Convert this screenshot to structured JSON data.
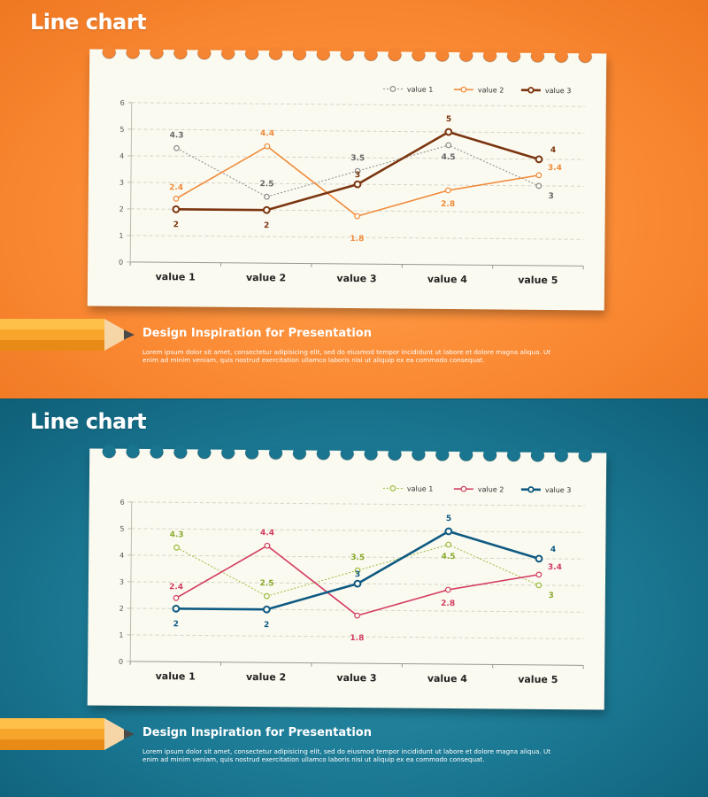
{
  "slides": [
    {
      "title": "Line chart",
      "subtitle": "Design Inspiration for Presentation",
      "body": "Lorem ipsum dolor sit amet, consectetur adipisicing elit, sed do eiusmod tempor incididunt ut labore et dolore magna aliqua. Ut enim ad minim veniam, quis nostrud exercitation ullamco laboris nisi ut aliquip ex ea commodo consequat.",
      "colors": {
        "background": "#fb8a34",
        "hole": "#f58532",
        "series": [
          "#8a8a8a",
          "#f08a3a",
          "#7b3510"
        ],
        "labels": [
          "#666666",
          "#f08a3a",
          "#7b3510"
        ]
      }
    },
    {
      "title": "Line chart",
      "subtitle": "Design Inspiration for Presentation",
      "body": "Lorem ipsum dolor sit amet, consectetur adipisicing elit, sed do eiusmod tempor incididunt ut labore et dolore magna aliqua. Ut enim ad minim veniam, quis nostrud exercitation ullamco laboris nisi ut aliquip ex ea commodo consequat.",
      "colors": {
        "background": "#1b7893",
        "hole": "#1a7690",
        "series": [
          "#9bbb3c",
          "#d23a62",
          "#0e5a82"
        ],
        "labels": [
          "#8aaa2c",
          "#d23a62",
          "#0e5a82"
        ]
      }
    }
  ],
  "chart_data": [
    {
      "type": "line",
      "categories": [
        "value 1",
        "value 2",
        "value 3",
        "value 4",
        "value 5"
      ],
      "series": [
        {
          "name": "value 1",
          "values": [
            4.3,
            2.5,
            3.5,
            4.5,
            3
          ],
          "style": "dotted"
        },
        {
          "name": "value 2",
          "values": [
            2.4,
            4.4,
            1.8,
            2.8,
            3.4
          ],
          "style": "solid"
        },
        {
          "name": "value 3",
          "values": [
            2,
            2,
            3,
            5,
            4
          ],
          "style": "thick"
        }
      ],
      "ylim": [
        0,
        6
      ],
      "yticks": [
        0,
        1,
        2,
        3,
        4,
        5,
        6
      ],
      "grid": true,
      "legend": "top-right",
      "data_labels": true
    },
    {
      "type": "line",
      "categories": [
        "value 1",
        "value 2",
        "value 3",
        "value 4",
        "value 5"
      ],
      "series": [
        {
          "name": "value 1",
          "values": [
            4.3,
            2.5,
            3.5,
            4.5,
            3
          ],
          "style": "dotted"
        },
        {
          "name": "value 2",
          "values": [
            2.4,
            4.4,
            1.8,
            2.8,
            3.4
          ],
          "style": "solid"
        },
        {
          "name": "value 3",
          "values": [
            2,
            2,
            3,
            5,
            4
          ],
          "style": "thick"
        }
      ],
      "ylim": [
        0,
        6
      ],
      "yticks": [
        0,
        1,
        2,
        3,
        4,
        5,
        6
      ],
      "grid": true,
      "legend": "top-right",
      "data_labels": true
    }
  ]
}
